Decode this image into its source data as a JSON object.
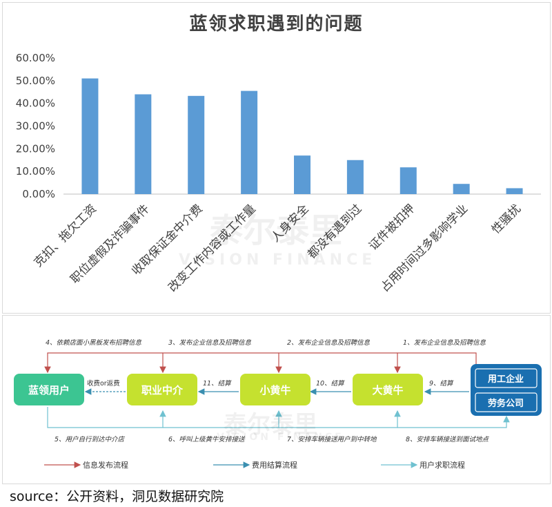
{
  "chart_data": {
    "type": "bar",
    "title": "蓝领求职遇到的问题",
    "categories": [
      "克扣、拖欠工资",
      "职位虚假及诈骗事件",
      "收取保证金中介费",
      "改变工作内容或工作量",
      "人身安全",
      "都没有遇到过",
      "证件被扣押",
      "占用时间过多影响学业",
      "性骚扰"
    ],
    "values": [
      51.0,
      44.0,
      43.3,
      45.5,
      17.0,
      15.0,
      11.8,
      4.5,
      2.6
    ],
    "yticks": [
      "0.00%",
      "10.00%",
      "20.00%",
      "30.00%",
      "40.00%",
      "50.00%",
      "60.00%"
    ],
    "ylim": [
      0,
      60
    ],
    "bar_color": "#5b9bd5",
    "grid": false
  },
  "watermark": {
    "cn": "泰尔泰里",
    "en": "VISION FINANCE"
  },
  "flow": {
    "nodes": {
      "user": "蓝领用户",
      "agency": "职业中介",
      "small": "小黄牛",
      "big": "大黄牛",
      "employer": "用工企业",
      "labor": "劳务公司"
    },
    "top_labels": [
      "4、依赖店面小黑板发布招聘信息",
      "3、发布企业信息及招聘信息",
      "2、发布企业信息及招聘信息",
      "1、发布企业信息及招聘信息"
    ],
    "mid_labels": [
      "收费or返费",
      "11、结算",
      "10、结算",
      "9、结算"
    ],
    "bottom_labels": [
      "5、用户自行到达中介店",
      "6、呼叫上级黄牛安排接送",
      "7、安排车辆接送用户到中转地",
      "8、安排车辆接送到面试地点"
    ],
    "legend": [
      "信息发布流程",
      "费用结算流程",
      "用户求职流程"
    ],
    "colors": {
      "green": "#3cc592",
      "yellow": "#c5e12f",
      "blue": "#1a6fb0",
      "red": "#c0504d",
      "teal": "#3a8fb0",
      "lightblue": "#6fc1d0"
    }
  },
  "source": "source：公开资料，洞见数据研究院"
}
